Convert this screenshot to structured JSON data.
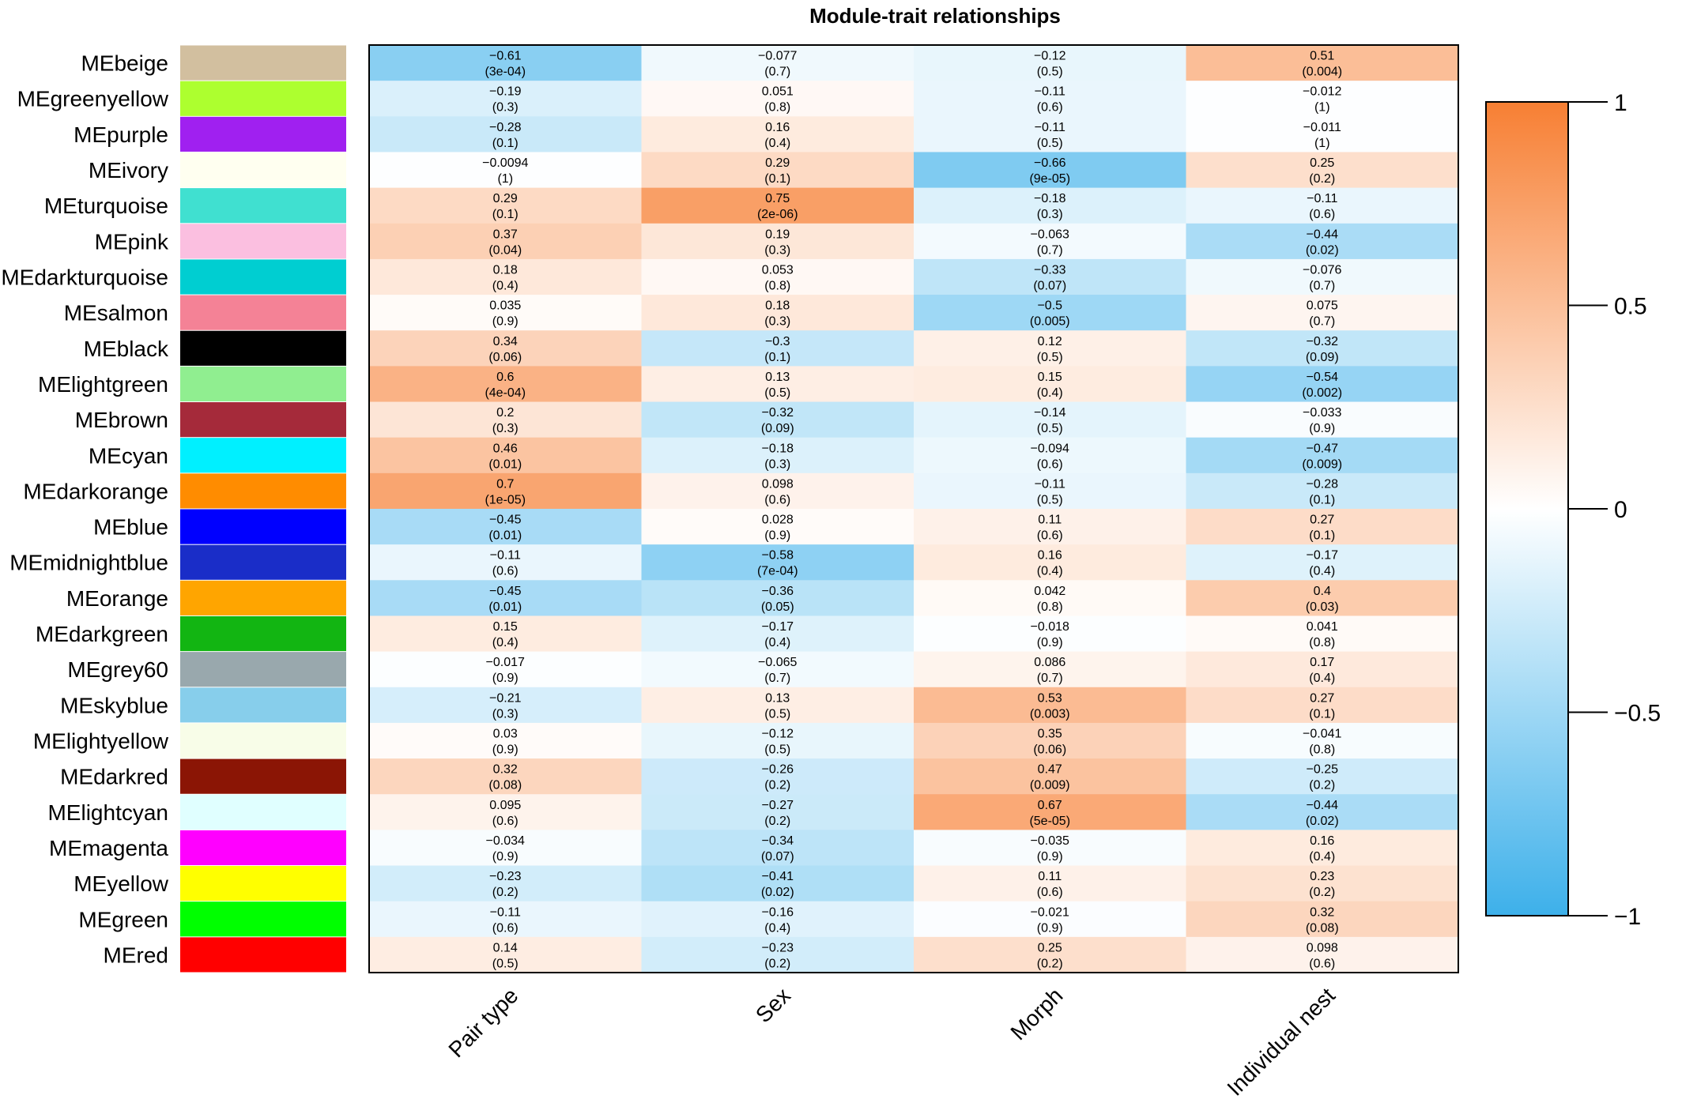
{
  "chart_data": {
    "type": "heatmap",
    "title": "Module-trait relationships",
    "rows": [
      {
        "name": "MEbeige",
        "color": "#d2bf9f"
      },
      {
        "name": "MEgreenyellow",
        "color": "#adff2f"
      },
      {
        "name": "MEpurple",
        "color": "#a020f0"
      },
      {
        "name": "MEivory",
        "color": "#fffff0"
      },
      {
        "name": "MEturquoise",
        "color": "#40e0d0"
      },
      {
        "name": "MEpink",
        "color": "#fbbfe0"
      },
      {
        "name": "MEdarkturquoise",
        "color": "#00ced1"
      },
      {
        "name": "MEsalmon",
        "color": "#f48296"
      },
      {
        "name": "MEblack",
        "color": "#000000"
      },
      {
        "name": "MElightgreen",
        "color": "#90ee90"
      },
      {
        "name": "MEbrown",
        "color": "#a52a3a"
      },
      {
        "name": "MEcyan",
        "color": "#00f0ff"
      },
      {
        "name": "MEdarkorange",
        "color": "#ff8c00"
      },
      {
        "name": "MEblue",
        "color": "#0000ff"
      },
      {
        "name": "MEmidnightblue",
        "color": "#1a2dc8"
      },
      {
        "name": "MEorange",
        "color": "#ffa500"
      },
      {
        "name": "MEdarkgreen",
        "color": "#12b512"
      },
      {
        "name": "MEgrey60",
        "color": "#99a8ad"
      },
      {
        "name": "MEskyblue",
        "color": "#87ceeb"
      },
      {
        "name": "MElightyellow",
        "color": "#f8fde8"
      },
      {
        "name": "MEdarkred",
        "color": "#8b1505"
      },
      {
        "name": "MElightcyan",
        "color": "#e0ffff"
      },
      {
        "name": "MEmagenta",
        "color": "#ff00ff"
      },
      {
        "name": "MEyellow",
        "color": "#ffff00"
      },
      {
        "name": "MEgreen",
        "color": "#00ff00"
      },
      {
        "name": "MEred",
        "color": "#ff0000"
      }
    ],
    "columns": [
      "Pair type",
      "Sex",
      "Morph",
      "Individual nest"
    ],
    "values": [
      [
        "−0.61",
        "−0.077",
        "−0.12",
        "0.51"
      ],
      [
        "−0.19",
        "0.051",
        "−0.11",
        "−0.012"
      ],
      [
        "−0.28",
        "0.16",
        "−0.11",
        "−0.011"
      ],
      [
        "−0.0094",
        "0.29",
        "−0.66",
        "0.25"
      ],
      [
        "0.29",
        "0.75",
        "−0.18",
        "−0.11"
      ],
      [
        "0.37",
        "0.19",
        "−0.063",
        "−0.44"
      ],
      [
        "0.18",
        "0.053",
        "−0.33",
        "−0.076"
      ],
      [
        "0.035",
        "0.18",
        "−0.5",
        "0.075"
      ],
      [
        "0.34",
        "−0.3",
        "0.12",
        "−0.32"
      ],
      [
        "0.6",
        "0.13",
        "0.15",
        "−0.54"
      ],
      [
        "0.2",
        "−0.32",
        "−0.14",
        "−0.033"
      ],
      [
        "0.46",
        "−0.18",
        "−0.094",
        "−0.47"
      ],
      [
        "0.7",
        "0.098",
        "−0.11",
        "−0.28"
      ],
      [
        "−0.45",
        "0.028",
        "0.11",
        "0.27"
      ],
      [
        "−0.11",
        "−0.58",
        "0.16",
        "−0.17"
      ],
      [
        "−0.45",
        "−0.36",
        "0.042",
        "0.4"
      ],
      [
        "0.15",
        "−0.17",
        "−0.018",
        "0.041"
      ],
      [
        "−0.017",
        "−0.065",
        "0.086",
        "0.17"
      ],
      [
        "−0.21",
        "0.13",
        "0.53",
        "0.27"
      ],
      [
        "0.03",
        "−0.12",
        "0.35",
        "−0.041"
      ],
      [
        "0.32",
        "−0.26",
        "0.47",
        "−0.25"
      ],
      [
        "0.095",
        "−0.27",
        "0.67",
        "−0.44"
      ],
      [
        "−0.034",
        "−0.34",
        "−0.035",
        "0.16"
      ],
      [
        "−0.23",
        "−0.41",
        "0.11",
        "0.23"
      ],
      [
        "−0.11",
        "−0.16",
        "−0.021",
        "0.32"
      ],
      [
        "0.14",
        "−0.23",
        "0.25",
        "0.098"
      ]
    ],
    "pvalues": [
      [
        "(3e-04)",
        "(0.7)",
        "(0.5)",
        "(0.004)"
      ],
      [
        "(0.3)",
        "(0.8)",
        "(0.6)",
        "(1)"
      ],
      [
        "(0.1)",
        "(0.4)",
        "(0.5)",
        "(1)"
      ],
      [
        "(1)",
        "(0.1)",
        "(9e-05)",
        "(0.2)"
      ],
      [
        "(0.1)",
        "(2e-06)",
        "(0.3)",
        "(0.6)"
      ],
      [
        "(0.04)",
        "(0.3)",
        "(0.7)",
        "(0.02)"
      ],
      [
        "(0.4)",
        "(0.8)",
        "(0.07)",
        "(0.7)"
      ],
      [
        "(0.9)",
        "(0.3)",
        "(0.005)",
        "(0.7)"
      ],
      [
        "(0.06)",
        "(0.1)",
        "(0.5)",
        "(0.09)"
      ],
      [
        "(4e-04)",
        "(0.5)",
        "(0.4)",
        "(0.002)"
      ],
      [
        "(0.3)",
        "(0.09)",
        "(0.5)",
        "(0.9)"
      ],
      [
        "(0.01)",
        "(0.3)",
        "(0.6)",
        "(0.009)"
      ],
      [
        "(1e-05)",
        "(0.6)",
        "(0.5)",
        "(0.1)"
      ],
      [
        "(0.01)",
        "(0.9)",
        "(0.6)",
        "(0.1)"
      ],
      [
        "(0.6)",
        "(7e-04)",
        "(0.4)",
        "(0.4)"
      ],
      [
        "(0.01)",
        "(0.05)",
        "(0.8)",
        "(0.03)"
      ],
      [
        "(0.4)",
        "(0.4)",
        "(0.9)",
        "(0.8)"
      ],
      [
        "(0.9)",
        "(0.7)",
        "(0.7)",
        "(0.4)"
      ],
      [
        "(0.3)",
        "(0.5)",
        "(0.003)",
        "(0.1)"
      ],
      [
        "(0.9)",
        "(0.5)",
        "(0.06)",
        "(0.8)"
      ],
      [
        "(0.08)",
        "(0.2)",
        "(0.009)",
        "(0.2)"
      ],
      [
        "(0.6)",
        "(0.2)",
        "(5e-05)",
        "(0.02)"
      ],
      [
        "(0.9)",
        "(0.07)",
        "(0.9)",
        "(0.4)"
      ],
      [
        "(0.2)",
        "(0.02)",
        "(0.6)",
        "(0.2)"
      ],
      [
        "(0.6)",
        "(0.4)",
        "(0.9)",
        "(0.08)"
      ],
      [
        "(0.5)",
        "(0.2)",
        "(0.2)",
        "(0.6)"
      ]
    ],
    "color_scale": {
      "range": [
        -1,
        1
      ],
      "ticks": [
        "1",
        "0.5",
        "0",
        "−0.5",
        "−1"
      ],
      "tick_values": [
        1,
        0.5,
        0,
        -0.5,
        -1
      ],
      "low_color": "#3db0ea",
      "mid_color": "#ffffff",
      "high_color": "#f77f33"
    }
  }
}
